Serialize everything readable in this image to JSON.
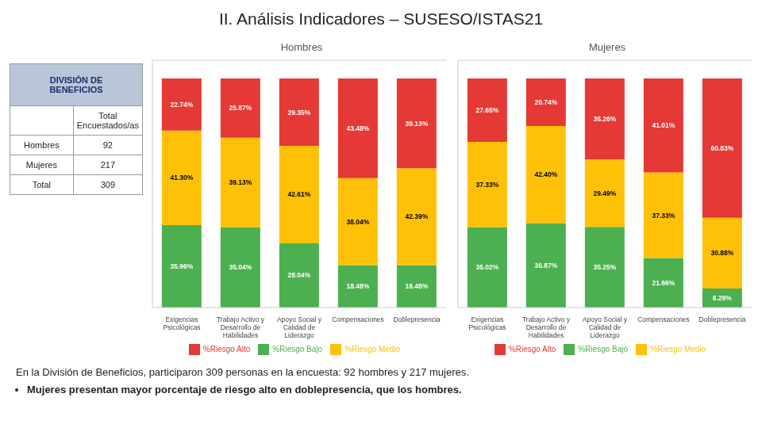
{
  "title": "II. Análisis Indicadores – SUSESO/ISTAS21",
  "table": {
    "header": "DIVISIÓN DE\nBENEFICIOS",
    "rows": [
      [
        null,
        "Total\nEncuestados/as"
      ],
      [
        "Hombres",
        "92"
      ],
      [
        "Mujeres",
        "217"
      ],
      [
        "Total",
        "309"
      ]
    ]
  },
  "annotations": [
    "En la División de Beneficios, participaron 309 personas en la encuesta: 92 hombres y 217 mujeres.",
    "Mujeres presentan mayor porcentaje de riesgo alto en doblepresencia, que los hombres."
  ],
  "chart_data": [
    {
      "type": "bar",
      "title": "Hombres",
      "stacked": true,
      "data_labels": true,
      "tick_labels": "x",
      "legend": "bottom",
      "ylim": [
        0,
        108
      ],
      "categories": [
        "Exigencias\nPsicológicas",
        "Trabajo Activo y\nDesarrollo de\nHabilidades",
        "Apoyo Social y\nCalidad de\nLiderazgo",
        "Compensaciones",
        "Doblepresencia"
      ],
      "series": [
        {
          "name": "%Riesgo Bajo",
          "color": "#4caf50",
          "values": [
            35.96,
            35.04,
            28.04,
            18.48,
            18.48
          ],
          "value_labels": [
            "35.96%",
            "35.04%",
            "28.04%",
            "18.48%",
            "18.48%"
          ]
        },
        {
          "name": "%Riesgo Medio",
          "color": "#ffc107",
          "values": [
            41.3,
            39.13,
            42.61,
            38.04,
            42.39
          ],
          "value_labels": [
            "41.30%",
            "39.13%",
            "42.61%",
            "38.04%",
            "42.39%"
          ]
        },
        {
          "name": "%Riesgo Alto",
          "color": "#e53935",
          "values": [
            22.74,
            25.87,
            29.35,
            43.48,
            39.13
          ],
          "value_labels": [
            "22.74%",
            "25.87%",
            "29.35%",
            "43.48%",
            "39.13%"
          ]
        }
      ]
    },
    {
      "type": "bar",
      "title": "Mujeres",
      "stacked": true,
      "data_labels": true,
      "tick_labels": "x",
      "legend": "bottom",
      "ylim": [
        0,
        108
      ],
      "categories": [
        "Exigencias\nPsicológicas",
        "Trabajo Activo y\nDesarrollo de\nHabilidades",
        "Apoyo Social y\nCalidad de\nLiderazgo",
        "Compensaciones",
        "Doblepresencia"
      ],
      "series": [
        {
          "name": "%Riesgo Bajo",
          "color": "#4caf50",
          "values": [
            35.02,
            36.87,
            35.25,
            21.66,
            8.29
          ],
          "value_labels": [
            "35.02%",
            "36.87%",
            "35.25%",
            "21.66%",
            "8.29%"
          ]
        },
        {
          "name": "%Riesgo Medio",
          "color": "#ffc107",
          "values": [
            37.33,
            42.4,
            29.49,
            37.33,
            30.88
          ],
          "value_labels": [
            "37.33%",
            "42.40%",
            "29.49%",
            "37.33%",
            "30.88%"
          ]
        },
        {
          "name": "%Riesgo Alto",
          "color": "#e53935",
          "values": [
            27.65,
            20.74,
            35.26,
            41.01,
            60.83
          ],
          "value_labels": [
            "27.65%",
            "20.74%",
            "35.26%",
            "41.01%",
            "60.83%"
          ]
        }
      ]
    }
  ]
}
